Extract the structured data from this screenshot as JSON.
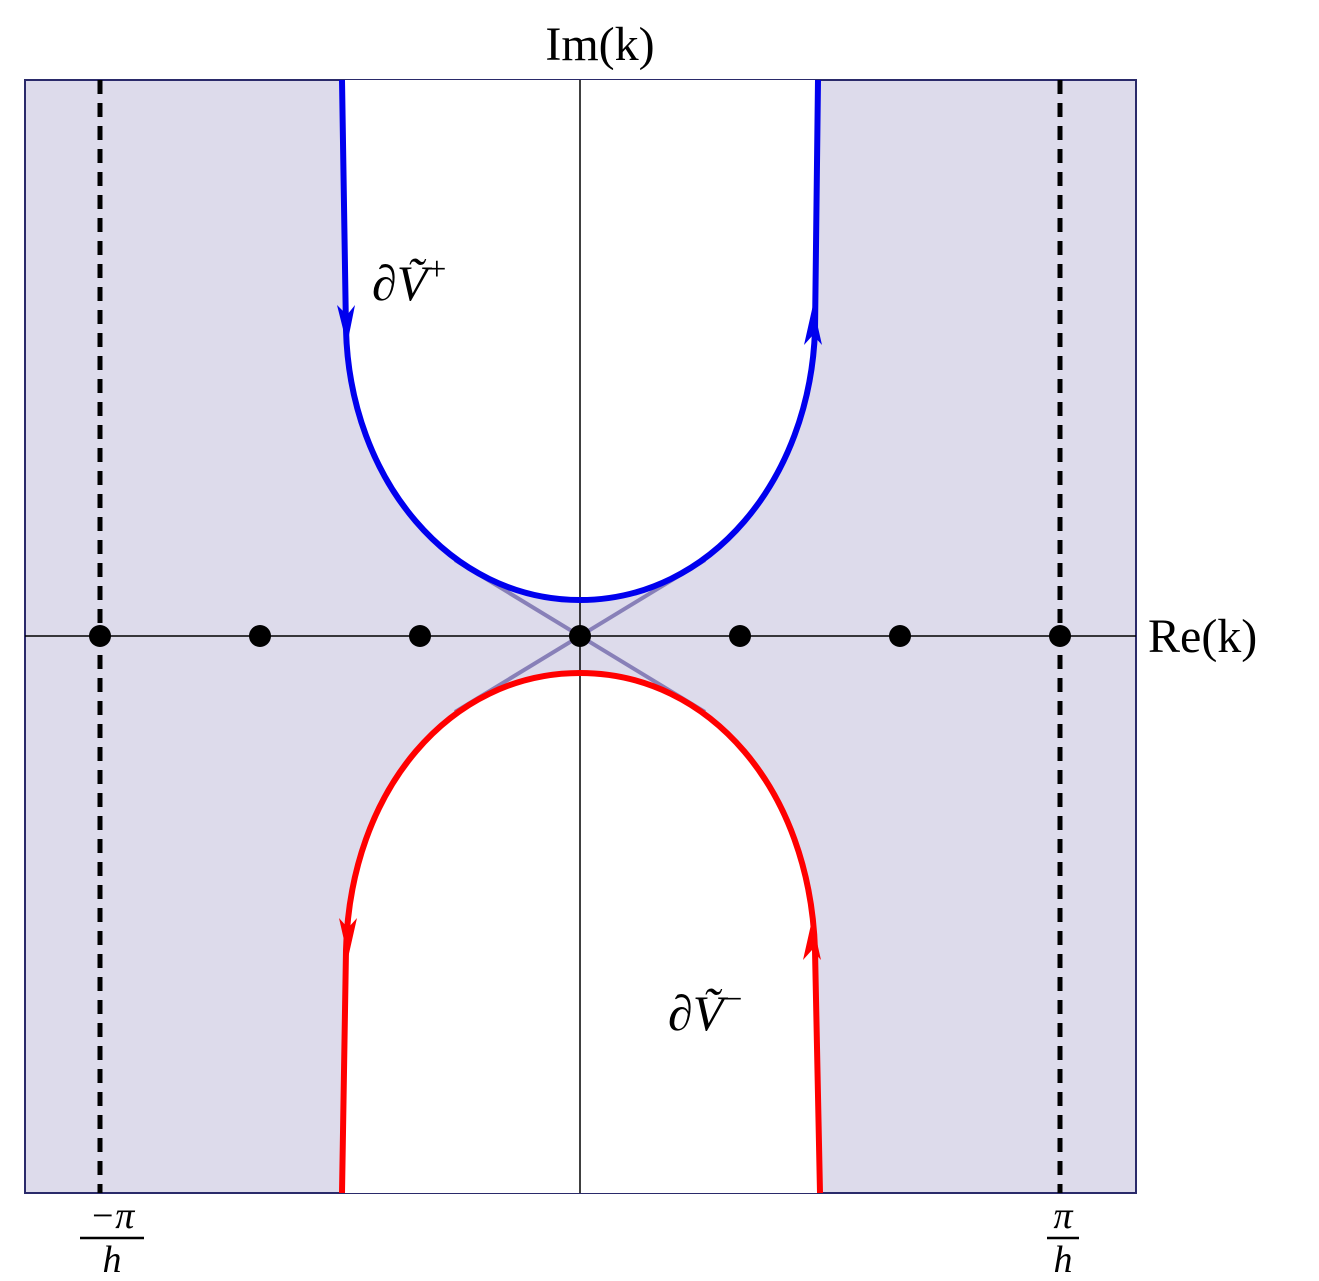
{
  "axes": {
    "x_label": "Re(k)",
    "y_label": "Im(k)"
  },
  "boundaries": [
    {
      "symbol": "∂Ṽ",
      "sign": "+"
    },
    {
      "symbol": "∂Ṽ",
      "sign": "−"
    }
  ],
  "ticks": [
    {
      "numerator": "−π",
      "denominator": "h"
    },
    {
      "numerator": "π",
      "denominator": "h"
    }
  ]
}
